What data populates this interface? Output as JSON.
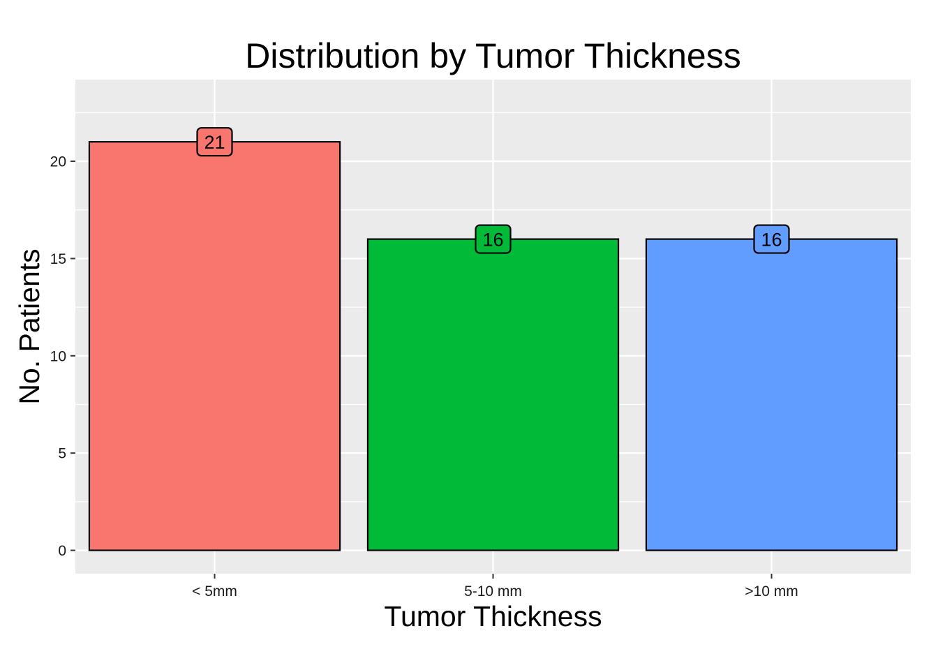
{
  "chart_data": {
    "type": "bar",
    "title": "Distribution by Tumor Thickness",
    "xlabel": "Tumor Thickness",
    "ylabel": "No. Patients",
    "categories": [
      "< 5mm",
      "5-10 mm",
      ">10 mm"
    ],
    "values": [
      21,
      16,
      16
    ],
    "data_labels": [
      "21",
      "16",
      "16"
    ],
    "colors": [
      "#F8766D",
      "#00BA38",
      "#619CFF"
    ],
    "ylim": [
      -1.2,
      24.2
    ],
    "yticks": [
      0,
      5,
      10,
      15,
      20
    ],
    "ytick_labels": [
      "0",
      "5",
      "10",
      "15",
      "20"
    ],
    "grid": true,
    "legend": "none",
    "panel_background": "#EBEBEB",
    "grid_color": "#FFFFFF",
    "bar_outline": "#000000"
  }
}
